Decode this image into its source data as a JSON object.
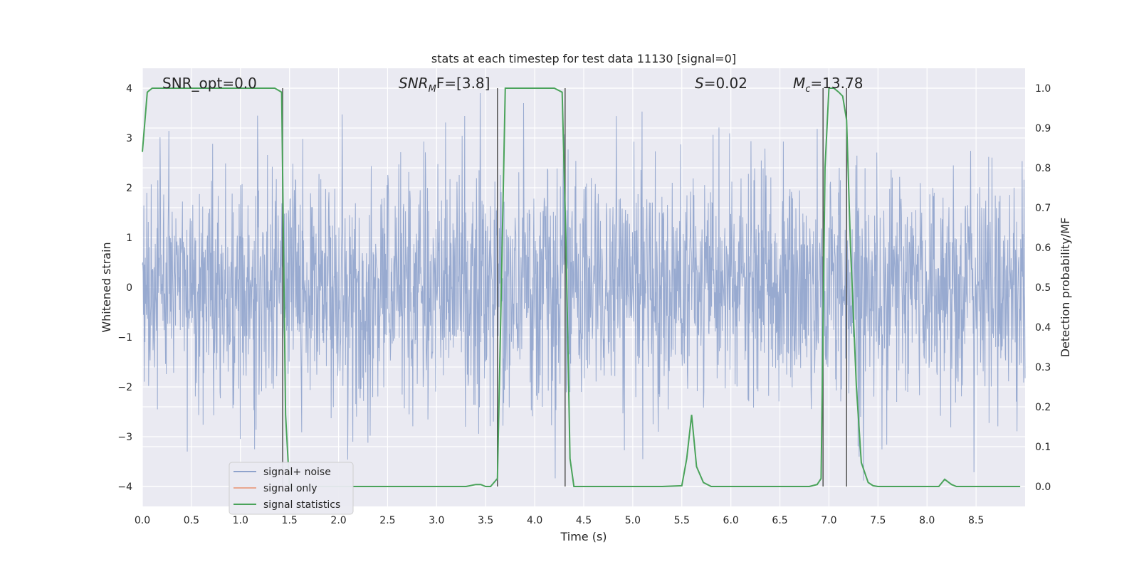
{
  "chart_data": {
    "type": "line",
    "title": "stats at each timestep for test data 11130 [signal=0]",
    "xlabel": "Time (s)",
    "ylabel_left": "Whitened strain",
    "ylabel_right": "Detection probability/MF",
    "xlim": [
      0.0,
      9.0
    ],
    "ylim_left": [
      -4.4,
      4.4
    ],
    "ylim_right": [
      -0.05,
      1.05
    ],
    "xticks": [
      "0.0",
      "0.5",
      "1.0",
      "1.5",
      "2.0",
      "2.5",
      "3.0",
      "3.5",
      "4.0",
      "4.5",
      "5.0",
      "5.5",
      "6.0",
      "6.5",
      "7.0",
      "7.5",
      "8.0",
      "8.5"
    ],
    "yticks_left": [
      "−4",
      "−3",
      "−2",
      "−1",
      "0",
      "1",
      "2",
      "3",
      "4"
    ],
    "yticks_right": [
      "0.0",
      "0.1",
      "0.2",
      "0.3",
      "0.4",
      "0.5",
      "0.6",
      "0.7",
      "0.8",
      "0.9",
      "1.0"
    ],
    "grid": true,
    "legend_position": "lower-left",
    "annotations": {
      "snr_opt": "SNR_opt=0.0",
      "snr_mf_prefix": "SNR",
      "snr_mf_sub": "M",
      "snr_mf_suffix": "F=[3.8]",
      "s_prefix": "S",
      "s_suffix": "=0.02",
      "mc_prefix": "M",
      "mc_sub": "c",
      "mc_suffix": "=13.78"
    },
    "series": [
      {
        "name": "signal+ noise",
        "color": "#8fa3cc",
        "axis": "left",
        "description_envelope_typical": 2.7
      },
      {
        "name": "signal only",
        "color": "#e9a78f",
        "axis": "left",
        "x": [],
        "y": []
      },
      {
        "name": "signal statistics",
        "color": "#4aa35a",
        "axis": "right",
        "x": [
          0.0,
          0.05,
          0.1,
          0.2,
          0.5,
          0.8,
          1.0,
          1.2,
          1.35,
          1.42,
          1.46,
          1.5,
          1.55,
          1.7,
          2.0,
          2.5,
          3.0,
          3.3,
          3.4,
          3.45,
          3.5,
          3.55,
          3.62,
          3.66,
          3.7,
          3.8,
          4.0,
          4.2,
          4.28,
          4.32,
          4.36,
          4.4,
          4.45,
          4.6,
          5.0,
          5.3,
          5.5,
          5.55,
          5.6,
          5.65,
          5.72,
          5.8,
          6.0,
          6.5,
          6.8,
          6.88,
          6.92,
          6.96,
          7.0,
          7.05,
          7.1,
          7.14,
          7.18,
          7.22,
          7.28,
          7.33,
          7.4,
          7.45,
          7.5,
          8.0,
          8.12,
          8.18,
          8.25,
          8.3,
          8.5,
          8.7,
          8.85,
          8.95
        ],
        "y": [
          0.84,
          0.99,
          1.0,
          1.0,
          1.0,
          1.0,
          1.0,
          1.0,
          1.0,
          0.99,
          0.18,
          0.0,
          0.0,
          0.0,
          0.0,
          0.0,
          0.0,
          0.0,
          0.005,
          0.005,
          0.0,
          0.0,
          0.02,
          0.5,
          1.0,
          1.0,
          1.0,
          1.0,
          0.99,
          0.6,
          0.07,
          0.0,
          0.0,
          0.0,
          0.0,
          0.0,
          0.002,
          0.07,
          0.18,
          0.05,
          0.01,
          0.0,
          0.0,
          0.0,
          0.0,
          0.005,
          0.02,
          0.8,
          1.0,
          1.0,
          0.99,
          0.98,
          0.92,
          0.6,
          0.25,
          0.06,
          0.01,
          0.002,
          0.0,
          0.0,
          0.0,
          0.018,
          0.005,
          0.0,
          0.0,
          0.0,
          0.0,
          0.0
        ]
      }
    ],
    "vertical_lines_x": [
      1.43,
      3.62,
      4.31,
      6.94,
      7.18
    ]
  }
}
